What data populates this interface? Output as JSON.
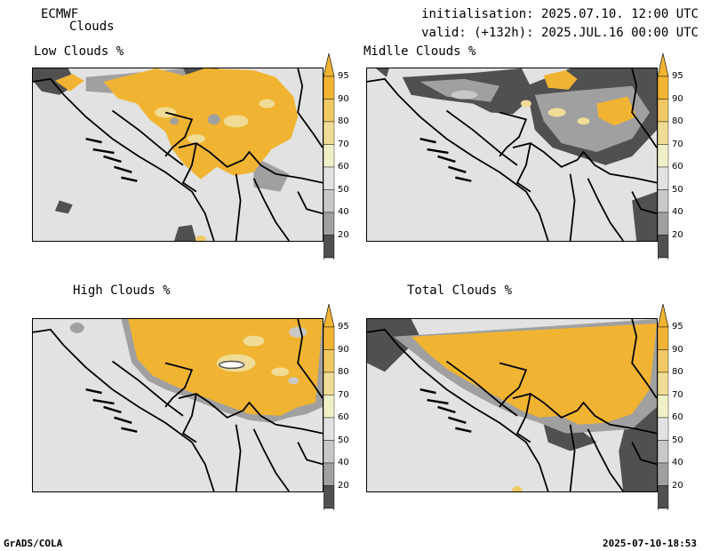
{
  "header": {
    "model": "ECMWF",
    "product": "Clouds",
    "init": "initialisation: 2025.07.10. 12:00 UTC",
    "valid": "valid: (+132h): 2025.JUL.16 00:00 UTC"
  },
  "panels": [
    {
      "title": "Low Clouds %"
    },
    {
      "title": "Midlle Clouds %"
    },
    {
      "title": "High Clouds %"
    },
    {
      "title": "Total Clouds %"
    }
  ],
  "colorbar": {
    "levels": [
      "95",
      "90",
      "80",
      "70",
      "60",
      "50",
      "40",
      "20"
    ],
    "colors": {
      "95": "#f0b432",
      "90": "#f0c864",
      "80": "#f0dc96",
      "70": "#f0f0c8",
      "60": "#e2e2e2",
      "50": "#c8c8c8",
      "40": "#a0a0a0",
      "20": "#505050",
      "low": "#ffffff"
    }
  },
  "footer": {
    "left": "GrADS/COLA",
    "right": "2025-07-10-18:53"
  }
}
